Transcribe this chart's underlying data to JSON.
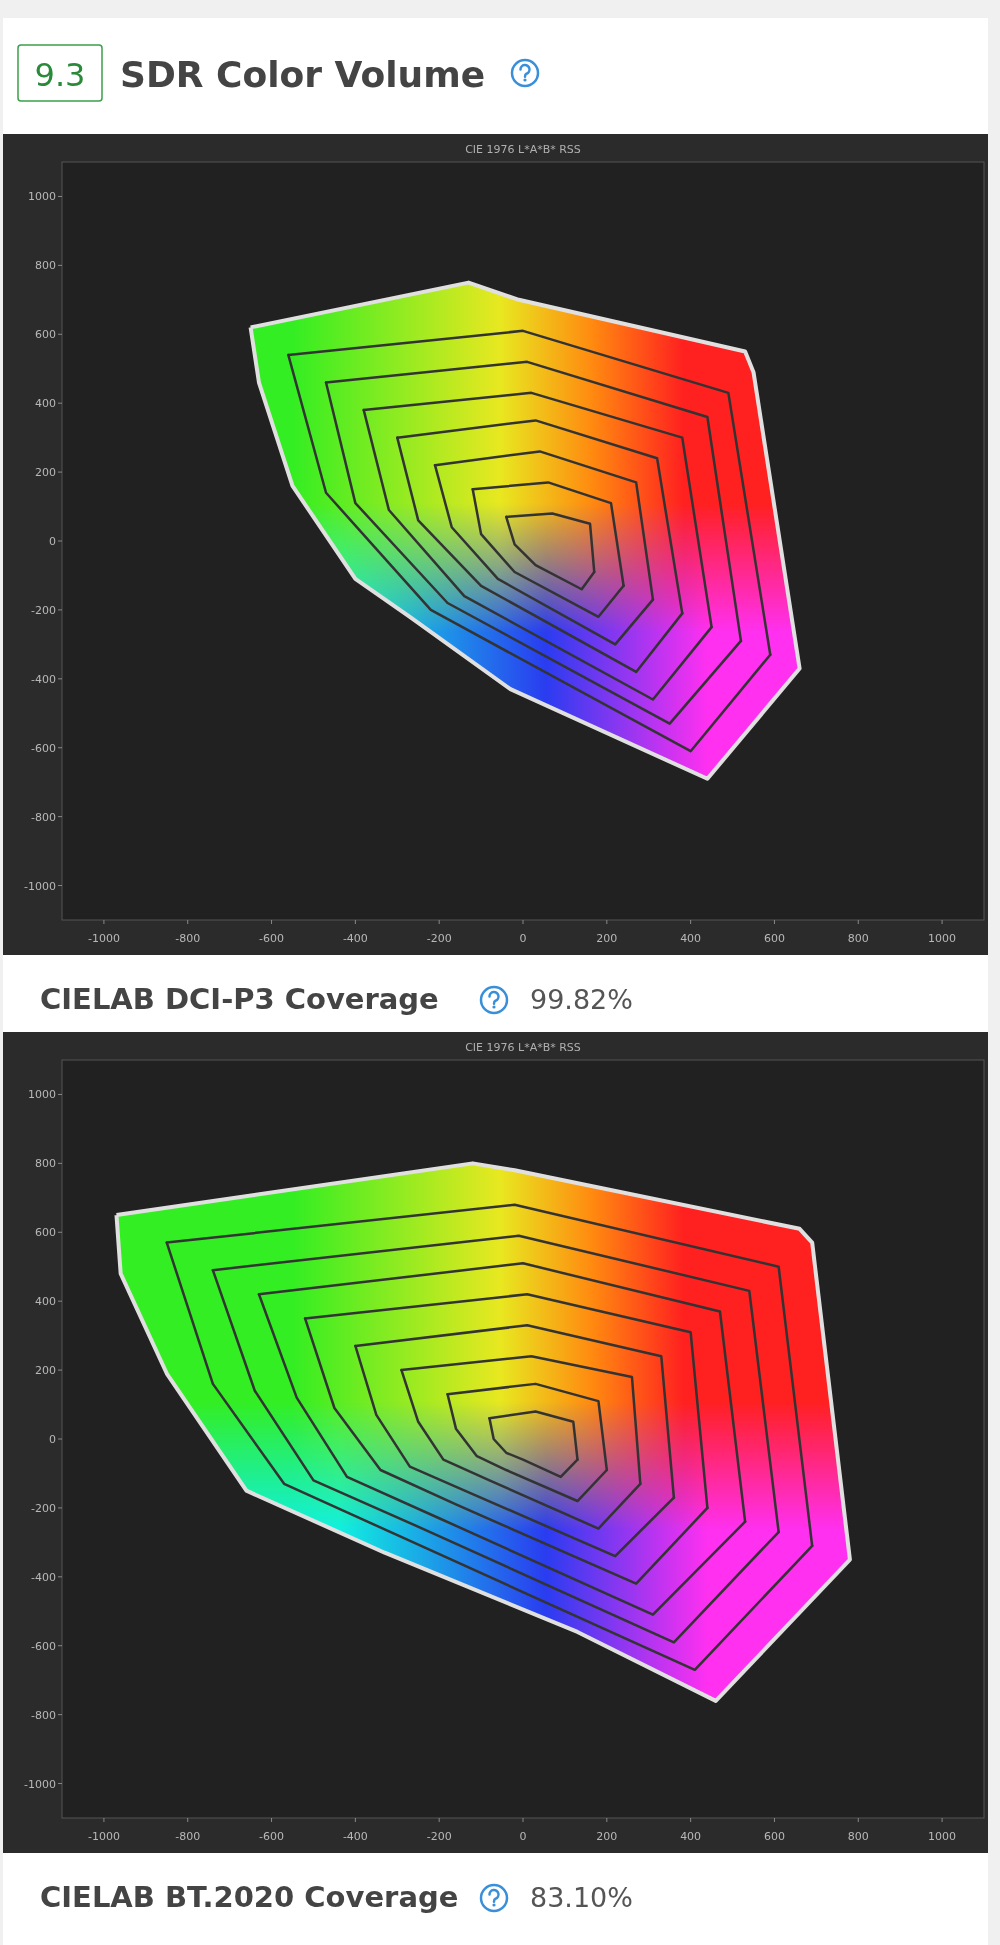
{
  "chart_data": [
    {
      "type": "line",
      "title": "CIE 1976 L*A*B* RSS",
      "annotations": [
        "9.3",
        "SDR Color Volume",
        "CIELAB DCI-P3 Coverage",
        "99.82%"
      ],
      "xlim": [
        -1100,
        1100
      ],
      "ylim": [
        -1100,
        1100
      ],
      "xticks": [
        -1000,
        -800,
        -600,
        -400,
        -200,
        0,
        200,
        400,
        600,
        800,
        1000
      ],
      "yticks": [
        -1000,
        -800,
        -600,
        -400,
        -200,
        0,
        200,
        400,
        600,
        800,
        1000
      ],
      "series": [
        {
          "type": "area",
          "color": "#e0e0e0",
          "x": [
            -650,
            -130,
            -10,
            530,
            550,
            660,
            440,
            -30,
            -270,
            -400,
            -550,
            -630,
            -650
          ],
          "values": [
            620,
            750,
            700,
            550,
            490,
            -370,
            -690,
            -430,
            -220,
            -110,
            160,
            460,
            620
          ]
        },
        {
          "color": "#333333",
          "x": [
            -560,
            0,
            490,
            590
          ],
          "values": [
            540,
            610,
            430,
            -330
          ]
        },
        {
          "color": "#333333",
          "x": [
            -560,
            -470,
            -220,
            400,
            590
          ],
          "values": [
            540,
            140,
            -200,
            -610,
            -330
          ]
        },
        {
          "color": "#333333",
          "x": [
            -470,
            10,
            440,
            520
          ],
          "values": [
            460,
            520,
            360,
            -290
          ]
        },
        {
          "color": "#333333",
          "x": [
            -470,
            -400,
            -180,
            350,
            520
          ],
          "values": [
            460,
            110,
            -180,
            -530,
            -290
          ]
        },
        {
          "color": "#333333",
          "x": [
            -380,
            20,
            380,
            450
          ],
          "values": [
            380,
            430,
            300,
            -250
          ]
        },
        {
          "color": "#333333",
          "x": [
            -380,
            -320,
            -140,
            310,
            450
          ],
          "values": [
            380,
            90,
            -160,
            -460,
            -250
          ]
        },
        {
          "color": "#333333",
          "x": [
            -300,
            30,
            320,
            380
          ],
          "values": [
            300,
            350,
            240,
            -210
          ]
        },
        {
          "color": "#333333",
          "x": [
            -300,
            -250,
            -100,
            270,
            380
          ],
          "values": [
            300,
            60,
            -130,
            -380,
            -210
          ]
        },
        {
          "color": "#333333",
          "x": [
            -210,
            40,
            270,
            310
          ],
          "values": [
            220,
            260,
            170,
            -170
          ]
        },
        {
          "color": "#333333",
          "x": [
            -210,
            -170,
            -60,
            220,
            310
          ],
          "values": [
            220,
            40,
            -110,
            -300,
            -170
          ]
        },
        {
          "color": "#333333",
          "x": [
            -120,
            60,
            210,
            240
          ],
          "values": [
            150,
            170,
            110,
            -130
          ]
        },
        {
          "color": "#333333",
          "x": [
            -120,
            -100,
            -20,
            180,
            240
          ],
          "values": [
            150,
            20,
            -90,
            -220,
            -130
          ]
        },
        {
          "color": "#333333",
          "x": [
            -40,
            70,
            160,
            170
          ],
          "values": [
            70,
            80,
            50,
            -90
          ]
        },
        {
          "color": "#333333",
          "x": [
            -40,
            -20,
            30,
            140,
            170
          ],
          "values": [
            70,
            -10,
            -70,
            -140,
            -90
          ]
        }
      ]
    },
    {
      "type": "line",
      "title": "CIE 1976 L*A*B* RSS",
      "annotations": [
        "CIELAB BT.2020 Coverage",
        "83.10%"
      ],
      "xlim": [
        -1100,
        1100
      ],
      "ylim": [
        -1100,
        1100
      ],
      "xticks": [
        -1000,
        -800,
        -600,
        -400,
        -200,
        0,
        200,
        400,
        600,
        800,
        1000
      ],
      "yticks": [
        -1000,
        -800,
        -600,
        -400,
        -200,
        0,
        200,
        400,
        600,
        800,
        1000
      ],
      "series": [
        {
          "type": "area",
          "color": "#e0e0e0",
          "x": [
            -970,
            -120,
            -20,
            660,
            690,
            780,
            460,
            130,
            -330,
            -660,
            -850,
            -960,
            -970
          ],
          "values": [
            650,
            800,
            780,
            610,
            570,
            -350,
            -760,
            -560,
            -330,
            -150,
            190,
            480,
            650
          ]
        },
        {
          "color": "#333333",
          "x": [
            -850,
            -20,
            610,
            690
          ],
          "values": [
            570,
            680,
            500,
            -310
          ]
        },
        {
          "color": "#333333",
          "x": [
            -850,
            -740,
            -570,
            -280,
            410,
            690
          ],
          "values": [
            570,
            160,
            -130,
            -290,
            -670,
            -310
          ]
        },
        {
          "color": "#333333",
          "x": [
            -740,
            -10,
            540,
            610
          ],
          "values": [
            490,
            590,
            430,
            -270
          ]
        },
        {
          "color": "#333333",
          "x": [
            -740,
            -640,
            -500,
            -240,
            360,
            610
          ],
          "values": [
            490,
            140,
            -120,
            -260,
            -590,
            -270
          ]
        },
        {
          "color": "#333333",
          "x": [
            -630,
            0,
            470,
            530
          ],
          "values": [
            420,
            510,
            370,
            -240
          ]
        },
        {
          "color": "#333333",
          "x": [
            -630,
            -540,
            -420,
            -200,
            310,
            530
          ],
          "values": [
            420,
            120,
            -110,
            -230,
            -510,
            -240
          ]
        },
        {
          "color": "#333333",
          "x": [
            -520,
            10,
            400,
            440
          ],
          "values": [
            350,
            420,
            310,
            -200
          ]
        },
        {
          "color": "#333333",
          "x": [
            -520,
            -450,
            -340,
            -160,
            270,
            440
          ],
          "values": [
            350,
            90,
            -90,
            -190,
            -420,
            -200
          ]
        },
        {
          "color": "#333333",
          "x": [
            -400,
            10,
            330,
            360
          ],
          "values": [
            270,
            330,
            240,
            -170
          ]
        },
        {
          "color": "#333333",
          "x": [
            -400,
            -350,
            -270,
            -120,
            220,
            360
          ],
          "values": [
            270,
            70,
            -80,
            -160,
            -340,
            -170
          ]
        },
        {
          "color": "#333333",
          "x": [
            -290,
            20,
            260,
            280
          ],
          "values": [
            200,
            240,
            180,
            -130
          ]
        },
        {
          "color": "#333333",
          "x": [
            -290,
            -250,
            -190,
            -80,
            180,
            280
          ],
          "values": [
            200,
            50,
            -60,
            -120,
            -260,
            -130
          ]
        },
        {
          "color": "#333333",
          "x": [
            -180,
            30,
            180,
            200
          ],
          "values": [
            130,
            160,
            110,
            -90
          ]
        },
        {
          "color": "#333333",
          "x": [
            -180,
            -160,
            -110,
            -40,
            130,
            200
          ],
          "values": [
            130,
            30,
            -50,
            -90,
            -180,
            -90
          ]
        },
        {
          "color": "#333333",
          "x": [
            -80,
            30,
            120,
            130
          ],
          "values": [
            60,
            80,
            50,
            -60
          ]
        },
        {
          "color": "#333333",
          "x": [
            -80,
            -70,
            -40,
            0,
            90,
            130
          ],
          "values": [
            60,
            0,
            -40,
            -60,
            -110,
            -60
          ]
        }
      ]
    }
  ]
}
